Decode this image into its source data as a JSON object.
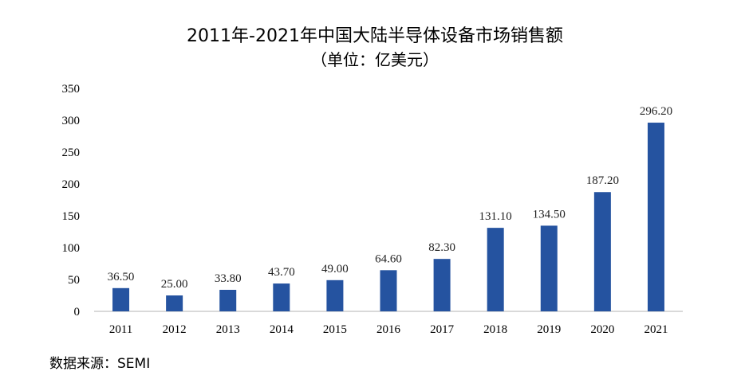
{
  "chart_data": {
    "type": "bar",
    "title": "2011年-2021年中国大陆半导体设备市场销售额",
    "subtitle": "（单位：亿美元）",
    "categories": [
      "2011",
      "2012",
      "2013",
      "2014",
      "2015",
      "2016",
      "2017",
      "2018",
      "2019",
      "2020",
      "2021"
    ],
    "values": [
      36.5,
      25.0,
      33.8,
      43.7,
      49.0,
      64.6,
      82.3,
      131.1,
      134.5,
      187.2,
      296.2
    ],
    "data_labels": [
      "36.50",
      "25.00",
      "33.80",
      "43.70",
      "49.00",
      "64.60",
      "82.30",
      "131.10",
      "134.50",
      "187.20",
      "296.20"
    ],
    "yticks": [
      "0",
      "50",
      "100",
      "150",
      "200",
      "250",
      "300",
      "350"
    ],
    "ylim": [
      0,
      350
    ],
    "grid": false,
    "legend": "none",
    "bar_color": "#2553a0"
  },
  "source": "数据来源：SEMI"
}
